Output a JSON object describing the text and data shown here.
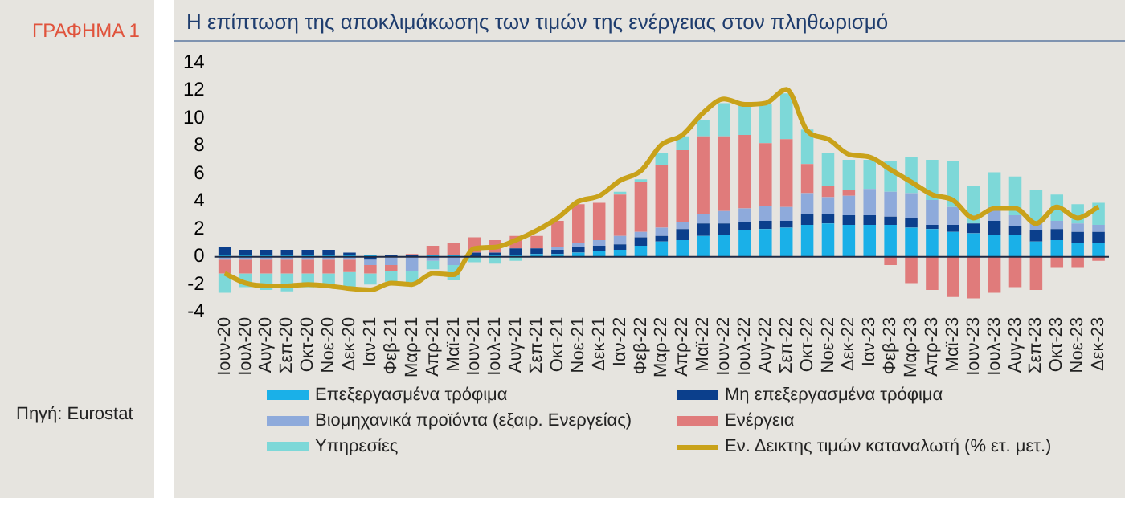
{
  "chart_data": {
    "type": "bar",
    "stacked": true,
    "title": "Η επίπτωση της αποκλιμάκωσης των τιμών της ενέργειας στον πληθωρισμό",
    "annotations": [
      "ΓΡΑΦΗΜΑ 1",
      "Πηγή: Eurostat"
    ],
    "categories": [
      "Ιουν-20",
      "Ιουλ-20",
      "Αυγ-20",
      "Σεπ-20",
      "Οκτ-20",
      "Νοε-20",
      "Δεκ-20",
      "Ιαν-21",
      "Φεβ-21",
      "Μαρ-21",
      "Απρ-21",
      "Μαϊ-21",
      "Ιουν-21",
      "Ιουλ-21",
      "Αυγ-21",
      "Σεπ-21",
      "Οκτ-21",
      "Νοε-21",
      "Δεκ-21",
      "Ιαν-22",
      "Φεβ-22",
      "Μαρ-22",
      "Απρ-22",
      "Μαϊ-22",
      "Ιουν-22",
      "Ιουλ-22",
      "Αυγ-22",
      "Σεπ-22",
      "Οκτ-22",
      "Νοε-22",
      "Δεκ-22",
      "Ιαν-23",
      "Φεβ-23",
      "Μαρ-23",
      "Απρ-23",
      "Μαϊ-23",
      "Ιουν-23",
      "Ιουλ-23",
      "Αυγ-23",
      "Σεπ-23",
      "Οκτ-23",
      "Νοε-23",
      "Δεκ-23"
    ],
    "series": [
      {
        "name": "Επεξεργασμένα τρόφιμα",
        "color": "#1ab0e8",
        "values": [
          0.1,
          0.1,
          0.1,
          0.1,
          0.1,
          0.1,
          0.1,
          0.1,
          0.0,
          0.0,
          0.1,
          0.1,
          null,
          0.1,
          0.1,
          0.2,
          0.2,
          0.3,
          0.4,
          0.5,
          0.8,
          1.1,
          1.2,
          1.5,
          1.6,
          1.9,
          2.0,
          2.1,
          2.3,
          2.4,
          2.3,
          2.3,
          2.3,
          2.1,
          2.0,
          1.8,
          1.7,
          1.6,
          1.6,
          1.1,
          1.2,
          1.0,
          1.0
        ]
      },
      {
        "name": "Μη επεξεργασμένα τρόφιμα",
        "color": "#0b3f8c",
        "values": [
          0.6,
          0.4,
          0.4,
          0.4,
          0.4,
          0.4,
          0.2,
          -0.2,
          0.1,
          0.1,
          0.0,
          0.0,
          0.3,
          0.2,
          0.5,
          0.4,
          0.3,
          0.4,
          0.4,
          0.4,
          0.6,
          0.4,
          0.8,
          0.9,
          0.8,
          0.6,
          0.6,
          0.5,
          0.8,
          0.7,
          0.7,
          0.7,
          0.6,
          0.7,
          0.3,
          0.5,
          0.7,
          1.0,
          0.6,
          0.8,
          0.8,
          0.8,
          0.8
        ]
      },
      {
        "name": "Βιομηχανικά προϊόντα (εξαιρ. Ενεργείας)",
        "color": "#8eaadb",
        "values": [
          -0.2,
          -0.2,
          -0.2,
          -0.2,
          -0.2,
          -0.2,
          -0.2,
          -0.4,
          -0.6,
          -1.0,
          -0.3,
          -0.6,
          0.0,
          0.0,
          null,
          null,
          0.2,
          0.3,
          0.4,
          0.6,
          0.4,
          0.6,
          0.5,
          0.7,
          0.9,
          1.0,
          1.1,
          1.0,
          1.5,
          1.2,
          1.4,
          1.9,
          1.8,
          1.8,
          1.8,
          1.3,
          null,
          1.0,
          0.8,
          0.6,
          0.6,
          0.6,
          0.5
        ]
      },
      {
        "name": "Ενέργεια",
        "color": "#e07b7b",
        "values": [
          -1.0,
          -1.0,
          -1.0,
          -1.0,
          -1.0,
          -1.0,
          -0.9,
          -0.6,
          -0.4,
          0.1,
          0.7,
          0.9,
          1.1,
          0.9,
          0.9,
          0.9,
          1.9,
          2.8,
          2.7,
          3.0,
          3.6,
          4.5,
          5.2,
          5.6,
          5.4,
          5.3,
          4.5,
          4.9,
          2.1,
          0.8,
          0.4,
          0.0,
          -0.6,
          -1.9,
          -2.4,
          -2.9,
          -3.0,
          -2.6,
          -2.2,
          -2.4,
          -0.8,
          -0.8,
          -0.3
        ]
      },
      {
        "name": "Υπηρεσίες",
        "color": "#7dd8d8",
        "values": [
          -1.4,
          -1.0,
          -1.2,
          -1.3,
          -1.0,
          -1.0,
          -1.2,
          -0.8,
          -0.8,
          -0.9,
          -0.6,
          -1.1,
          -0.4,
          -0.5,
          -0.3,
          0.0,
          0.0,
          0.0,
          0.0,
          0.2,
          0.2,
          0.9,
          1.0,
          1.2,
          2.4,
          2.2,
          2.8,
          3.3,
          2.5,
          2.4,
          2.2,
          2.1,
          2.2,
          2.6,
          2.9,
          3.3,
          2.7,
          2.5,
          2.8,
          2.3,
          1.9,
          1.4,
          1.6
        ]
      },
      {
        "name": "Εν. Δεικτης τιμών καταναλωτή (% ετ. μετ.)",
        "type": "line",
        "color": "#c9a21a",
        "values": [
          -1.2,
          -1.9,
          -2.1,
          -2.1,
          -2.0,
          -2.1,
          -2.3,
          -2.4,
          -1.9,
          -2.0,
          -1.2,
          -1.3,
          0.6,
          0.7,
          1.2,
          1.9,
          2.8,
          4.0,
          4.4,
          5.5,
          6.2,
          8.1,
          8.8,
          10.4,
          11.4,
          11.0,
          11.1,
          12.1,
          9.1,
          8.5,
          7.4,
          7.2,
          6.3,
          5.4,
          4.5,
          4.1,
          2.8,
          3.5,
          3.5,
          2.4,
          3.6,
          2.8,
          3.6
        ]
      }
    ],
    "ylim": [
      -4,
      14
    ],
    "yticks": [
      -4,
      -2,
      0,
      2,
      4,
      6,
      8,
      10,
      12,
      14
    ],
    "grid": false,
    "legend": "bottom",
    "ref_lines": [
      {
        "axis": "y",
        "value": 0,
        "color": "#1f2a44"
      }
    ]
  }
}
